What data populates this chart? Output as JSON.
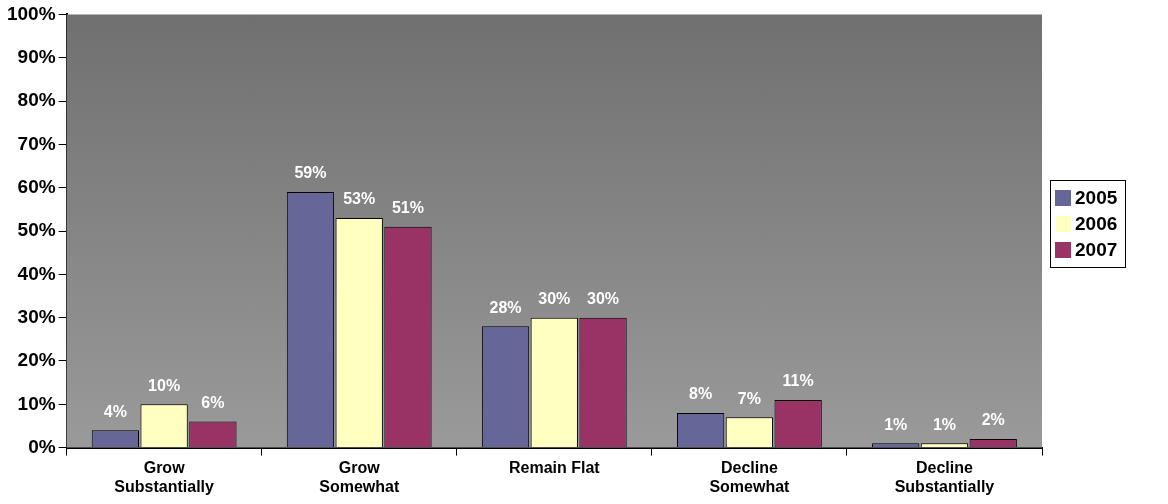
{
  "chart_data": {
    "type": "bar",
    "categories": [
      "Grow Substantially",
      "Grow Somewhat",
      "Remain Flat",
      "Decline Somewhat",
      "Decline Substantially"
    ],
    "series": [
      {
        "name": "2005",
        "color": "#666699",
        "values": [
          4,
          59,
          28,
          8,
          1
        ],
        "value_labels": [
          "4%",
          "59%",
          "28%",
          "8%",
          "1%"
        ]
      },
      {
        "name": "2006",
        "color": "#ffffc0",
        "values": [
          10,
          53,
          30,
          7,
          1
        ],
        "value_labels": [
          "10%",
          "53%",
          "30%",
          "7%",
          "1%"
        ]
      },
      {
        "name": "2007",
        "color": "#993366",
        "values": [
          6,
          51,
          30,
          11,
          2
        ],
        "value_labels": [
          "6%",
          "51%",
          "30%",
          "11%",
          "2%"
        ]
      }
    ],
    "ylim": [
      0,
      100
    ],
    "yticks": [
      {
        "value": 0,
        "label": "0%"
      },
      {
        "value": 10,
        "label": "10%"
      },
      {
        "value": 20,
        "label": "20%"
      },
      {
        "value": 30,
        "label": "30%"
      },
      {
        "value": 40,
        "label": "40%"
      },
      {
        "value": 50,
        "label": "50%"
      },
      {
        "value": 60,
        "label": "60%"
      },
      {
        "value": 70,
        "label": "70%"
      },
      {
        "value": 80,
        "label": "80%"
      },
      {
        "value": 90,
        "label": "90%"
      },
      {
        "value": 100,
        "label": "100%"
      }
    ],
    "grid": false,
    "legend": "right"
  }
}
